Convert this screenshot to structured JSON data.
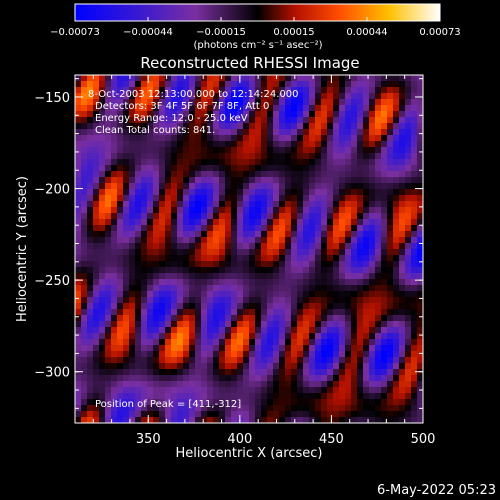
{
  "chart_data": {
    "type": "heatmap",
    "title": "Reconstructed RHESSI Image",
    "xlabel": "Heliocentric X (arcsec)",
    "ylabel": "Heliocentric Y (arcsec)",
    "xlim": [
      310,
      500
    ],
    "ylim": [
      -328,
      -138
    ],
    "x_ticks": [
      350,
      400,
      450,
      500
    ],
    "y_ticks": [
      -150,
      -200,
      -250,
      -300
    ],
    "x_tick_labels": [
      "350",
      "400",
      "450",
      "500"
    ],
    "y_tick_labels": [
      "−150",
      "−200",
      "−250",
      "−300"
    ],
    "colorbar": {
      "range": [
        -0.00073,
        0.00073
      ],
      "tick_labels": [
        "−0.00073",
        "−0.00044",
        "−0.00015",
        "0.00015",
        "0.00044",
        "0.00073"
      ],
      "unit_label": "(photons cm⁻² s⁻¹ asec⁻²)",
      "colors": [
        "#0000ff",
        "#4a20b0",
        "#7a2fa0",
        "#000000",
        "#d42000",
        "#ff6a00",
        "#ffd000",
        "#ffffff"
      ]
    },
    "annotations": {
      "time_range": "8-Oct-2003 12:13:00.000 to 12:14:24.000",
      "detectors": "Detectors: 3F 4F 5F 6F 7F 8F, Att 0",
      "energy_range": "Energy Range: 12.0 - 25.0 keV",
      "method": "Clean     Total counts: 841.",
      "peak_position": "Position of Peak = [411,-312]"
    },
    "grid": false,
    "legend": "colorbar-top"
  },
  "footer": {
    "timestamp": "6-May-2022 05:23"
  }
}
